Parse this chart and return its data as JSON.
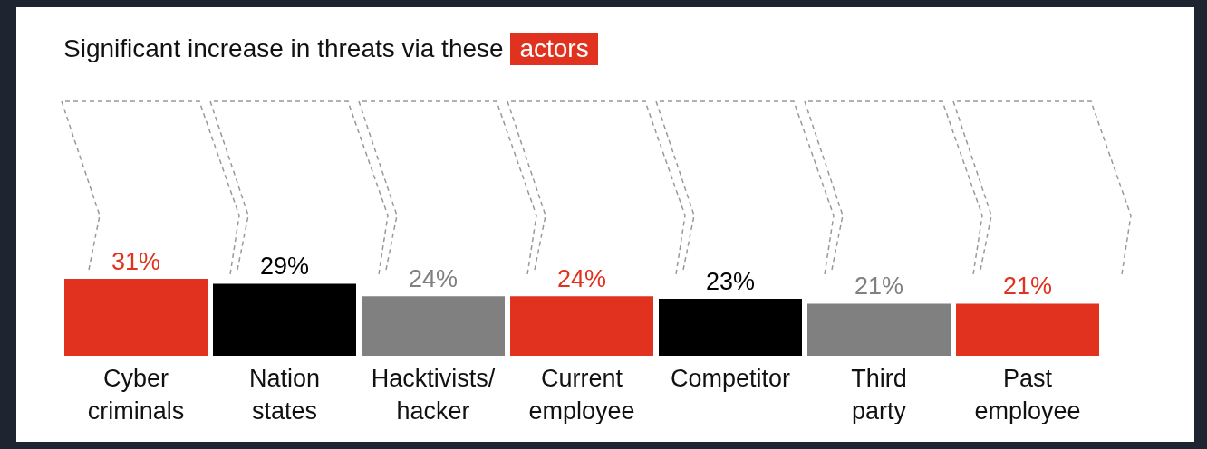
{
  "chart_data": {
    "type": "bar",
    "title": "Significant increase in threats via these actors",
    "categories": [
      "Cyber criminals",
      "Nation states",
      "Hacktivists/hacker",
      "Current employee",
      "Competitor",
      "Third party",
      "Past employee"
    ],
    "values": [
      31,
      29,
      24,
      24,
      23,
      21,
      21
    ],
    "colors": [
      "#e0321e",
      "#000000",
      "#808080",
      "#e0321e",
      "#000000",
      "#808080",
      "#e0321e"
    ],
    "value_labels": [
      "31%",
      "29%",
      "24%",
      "24%",
      "23%",
      "21%",
      "21%"
    ],
    "grid": false,
    "legend": false
  }
}
